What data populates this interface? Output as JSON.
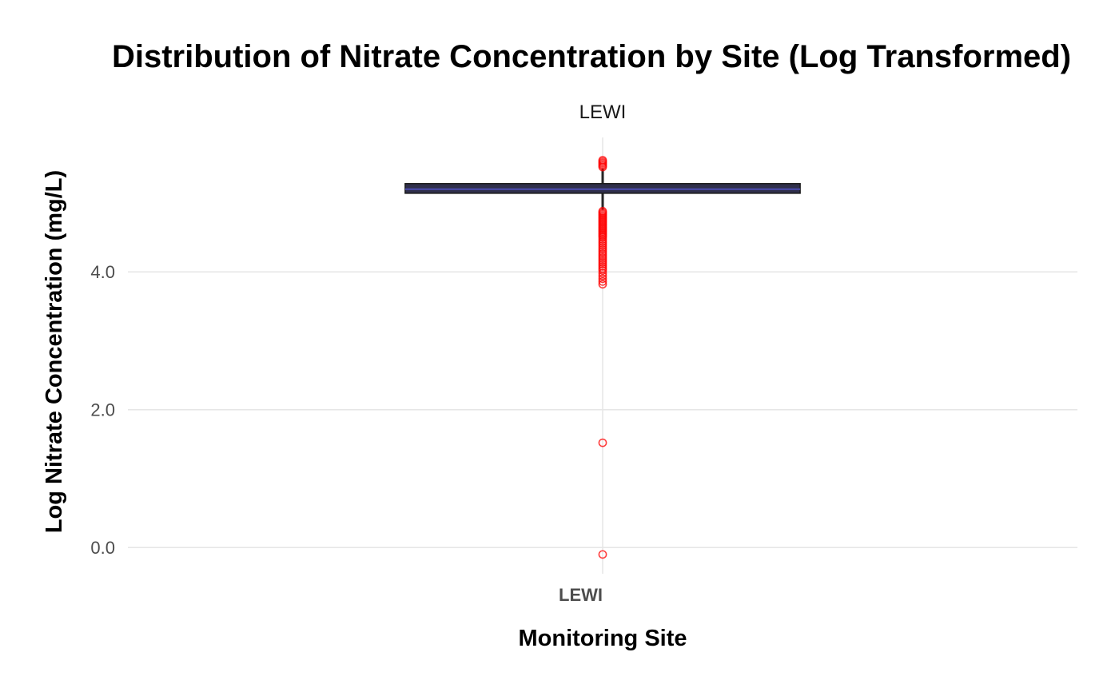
{
  "chart_data": {
    "type": "box",
    "title": "Distribution of Nitrate Concentration by Site (Log Transformed)",
    "facet_label": "LEWI",
    "xlabel": "Monitoring Site",
    "ylabel": "Log Nitrate Concentration (mg/L)",
    "categories": [
      "LEWI"
    ],
    "ylim": [
      -0.38,
      5.95
    ],
    "yticks": [
      {
        "value": 0,
        "label": "0.0"
      },
      {
        "value": 2,
        "label": "2.0"
      },
      {
        "value": 4,
        "label": "4.0"
      }
    ],
    "grid": true,
    "colors": {
      "box_fill": "#2f2f4a",
      "box_border": "#1a1a1a",
      "median": "#4b4bb0",
      "whisker": "#262626",
      "outlier": "#ff0000"
    },
    "series": [
      {
        "category": "LEWI",
        "stats": {
          "lower_whisker": 4.9,
          "q1": 5.14,
          "median": 5.2,
          "q3": 5.28,
          "upper_whisker": 5.5
        },
        "outliers": [
          5.62,
          5.6,
          5.58,
          5.56,
          5.54,
          5.52,
          4.88,
          4.86,
          4.84,
          4.82,
          4.8,
          4.78,
          4.76,
          4.74,
          4.72,
          4.7,
          4.68,
          4.66,
          4.64,
          4.62,
          4.6,
          4.58,
          4.56,
          4.54,
          4.52,
          4.5,
          4.47,
          4.44,
          4.41,
          4.38,
          4.35,
          4.32,
          4.29,
          4.26,
          4.23,
          4.2,
          4.17,
          4.14,
          4.11,
          4.08,
          4.05,
          4.02,
          3.98,
          3.94,
          3.9,
          3.86,
          3.82,
          1.52,
          -0.1
        ]
      }
    ]
  }
}
